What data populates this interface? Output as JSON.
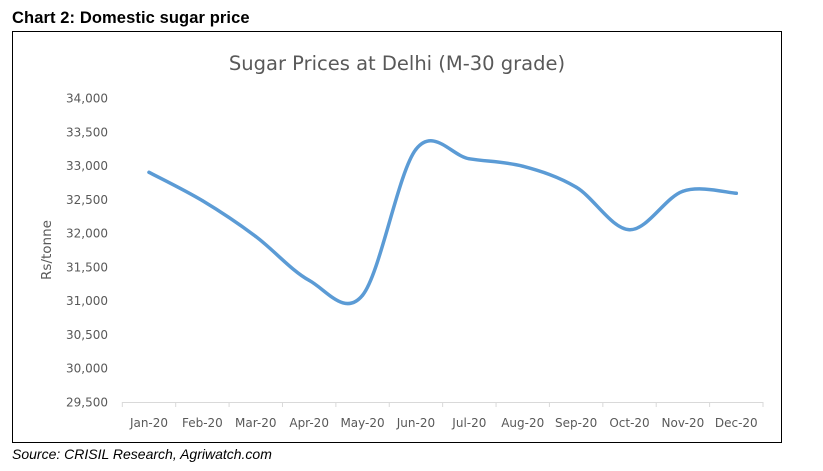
{
  "heading": "Chart 2: Domestic sugar price",
  "source": "Source: CRISIL Research, Agriwatch.com",
  "colors": {
    "line": "#5b9bd5",
    "axis": "#d9d9d9",
    "text": "#595959"
  },
  "chart_data": {
    "type": "line",
    "title": "Sugar Prices at Delhi (M-30 grade)",
    "xlabel": "",
    "ylabel": "Rs/tonne",
    "categories": [
      "Jan-20",
      "Feb-20",
      "Mar-20",
      "Apr-20",
      "May-20",
      "Jun-20",
      "Jul-20",
      "Aug-20",
      "Sep-20",
      "Oct-20",
      "Nov-20",
      "Dec-20"
    ],
    "series": [
      {
        "name": "Sugar Prices at Delhi (M-30 grade)",
        "smooth": true,
        "values": [
          32900,
          32480,
          31950,
          31300,
          31080,
          33240,
          33100,
          32990,
          32680,
          32050,
          32620,
          32590
        ]
      }
    ],
    "ylim": [
      29500,
      34000
    ],
    "ytick_step": 500,
    "yticks": [
      "34,000",
      "33,500",
      "33,000",
      "32,500",
      "32,000",
      "31,500",
      "31,000",
      "30,500",
      "30,000",
      "29,500"
    ],
    "grid": false,
    "legend": "none"
  }
}
